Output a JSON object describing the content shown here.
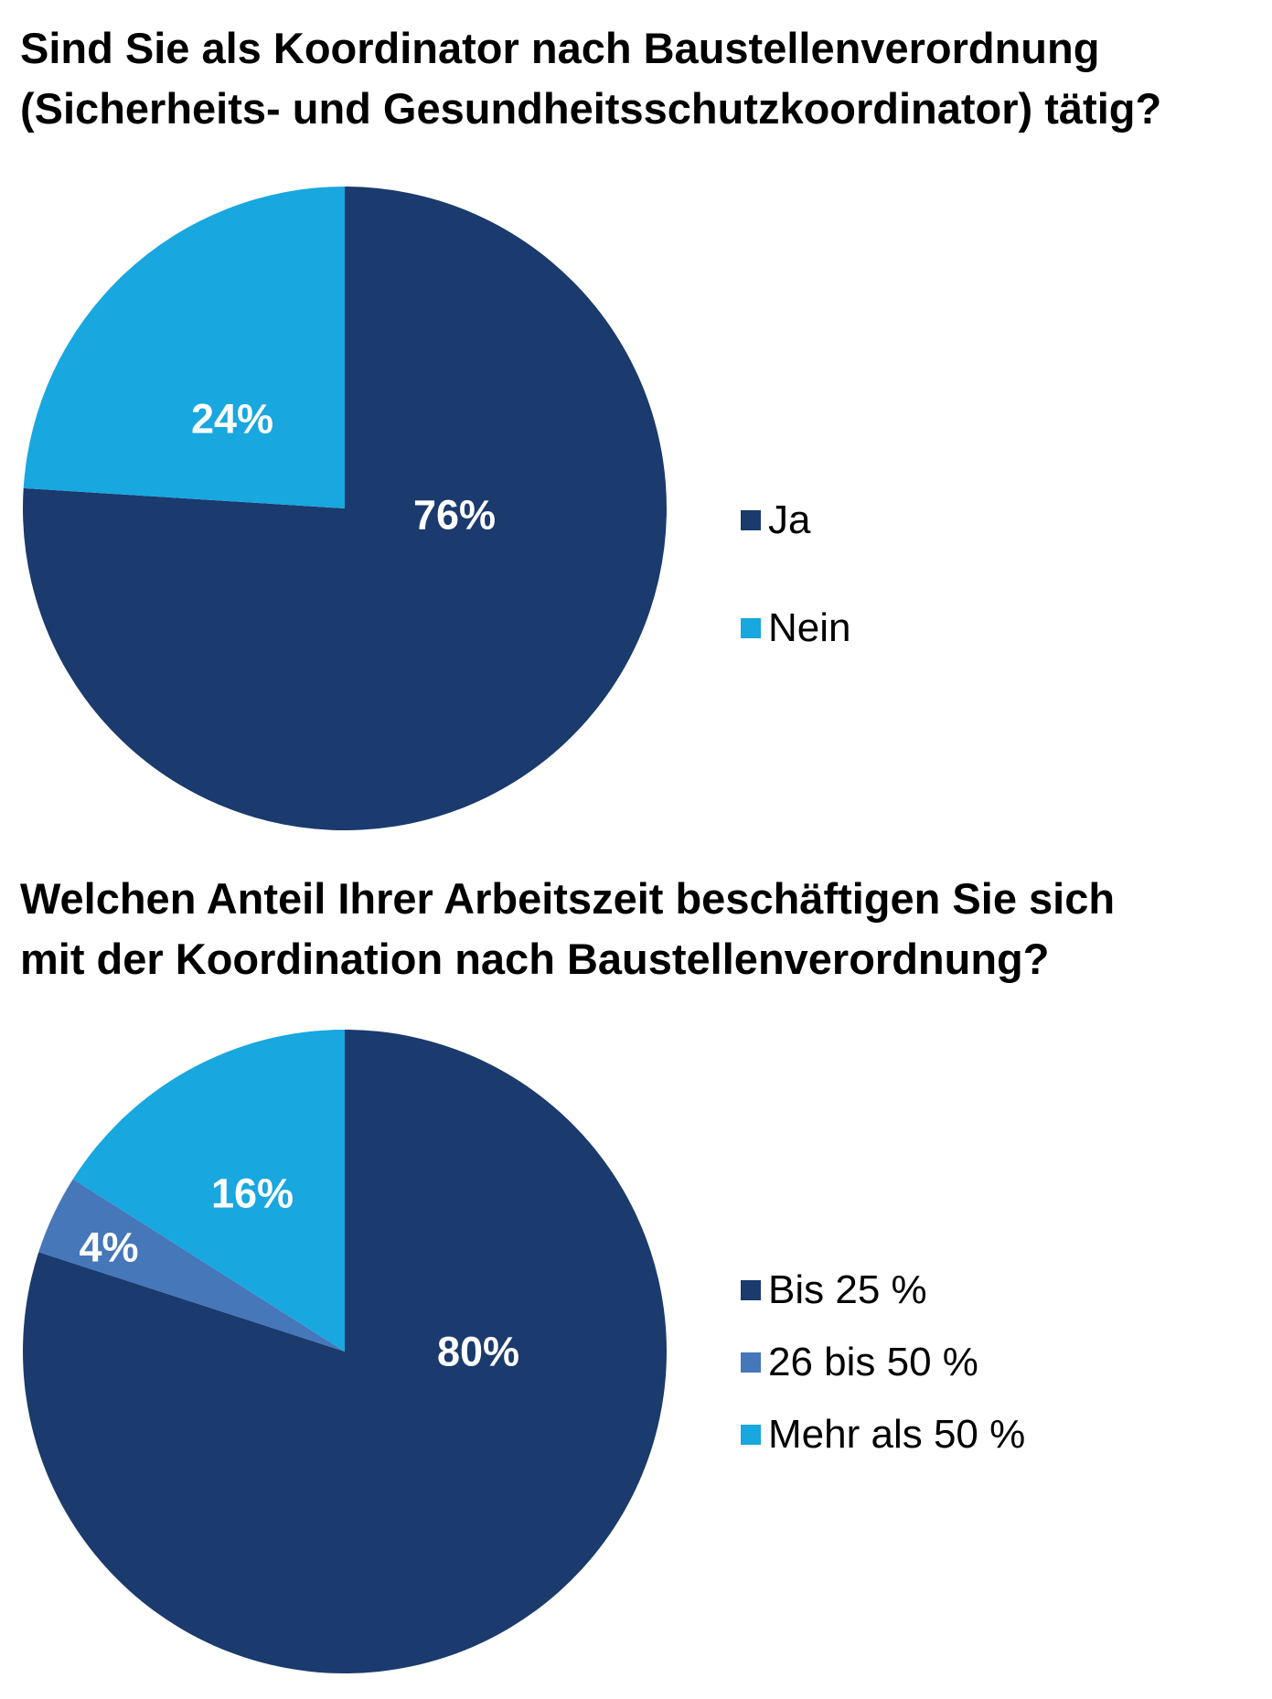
{
  "chart_data": [
    {
      "type": "pie",
      "title_lines": [
        "Sind Sie als Koordinator nach Baustellenverordnung",
        "(Sicherheits- und Gesundheitsschutzkoordinator) tätig?"
      ],
      "legend_placement": "right",
      "slices": [
        {
          "label": "Ja",
          "value": 76,
          "display": "76%",
          "color": "#1b3a6d"
        },
        {
          "label": "Nein",
          "value": 24,
          "display": "24%",
          "color": "#18a7df"
        }
      ]
    },
    {
      "type": "pie",
      "title_lines": [
        "Welchen Anteil Ihrer Arbeitszeit beschäftigen Sie sich",
        "mit der Koordination nach Baustellenverordnung?"
      ],
      "legend_placement": "right",
      "slices": [
        {
          "label": "Bis 25 %",
          "value": 80,
          "display": "80%",
          "color": "#1b3a6d"
        },
        {
          "label": "26 bis 50 %",
          "value": 4,
          "display": "4%",
          "color": "#4577b9"
        },
        {
          "label": "Mehr als 50 %",
          "value": 16,
          "display": "16%",
          "color": "#18a7df"
        }
      ]
    }
  ]
}
